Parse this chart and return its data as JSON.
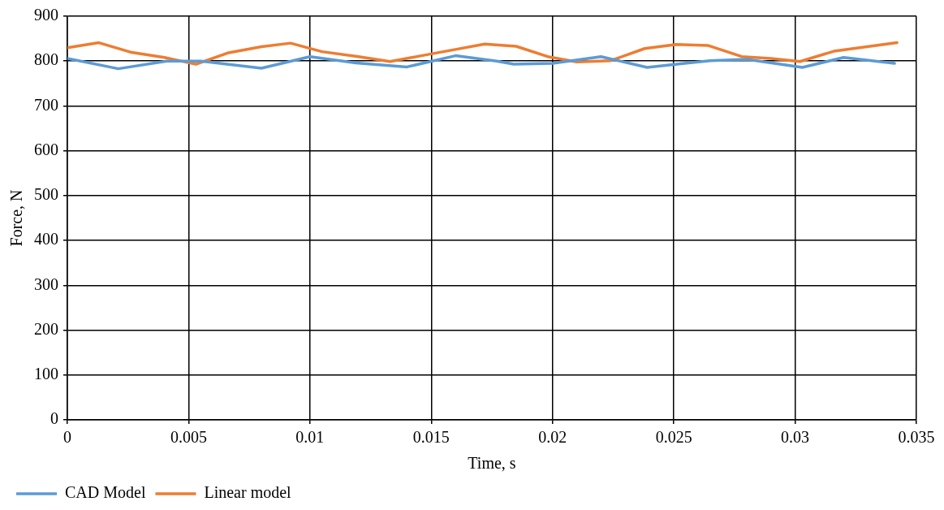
{
  "chart_data": {
    "type": "line",
    "xlabel": "Time, s",
    "ylabel": "Force, N",
    "xlim": [
      0,
      0.035
    ],
    "xticks": [
      0,
      0.005,
      0.01,
      0.015,
      0.02,
      0.025,
      0.03,
      0.035
    ],
    "ylim": [
      0,
      900
    ],
    "yticks": [
      0,
      100,
      200,
      300,
      400,
      500,
      600,
      700,
      800,
      900
    ],
    "grid": true,
    "legend": "bottom left",
    "marker": "none",
    "series": [
      {
        "name": "CAD Model",
        "color": "#5b9bd5",
        "x": [
          0,
          0.0021,
          0.0041,
          0.0055,
          0.008,
          0.01,
          0.0119,
          0.014,
          0.016,
          0.0177,
          0.0184,
          0.02,
          0.022,
          0.0239,
          0.0256,
          0.0265,
          0.028,
          0.0303,
          0.032,
          0.0341
        ],
        "values": [
          806,
          783,
          800,
          800,
          784,
          810,
          796,
          787,
          812,
          800,
          793,
          795,
          810,
          786,
          796,
          801,
          804,
          786,
          808,
          795
        ]
      },
      {
        "name": "Linear model",
        "color": "#ed7d31",
        "x": [
          0,
          0.0013,
          0.0026,
          0.004,
          0.0053,
          0.0066,
          0.008,
          0.0092,
          0.0105,
          0.012,
          0.0133,
          0.0145,
          0.016,
          0.0172,
          0.0185,
          0.0198,
          0.021,
          0.0224,
          0.0238,
          0.0251,
          0.0264,
          0.0278,
          0.029,
          0.0302,
          0.0316,
          0.0342
        ],
        "values": [
          830,
          841,
          820,
          808,
          793,
          818,
          832,
          840,
          821,
          810,
          799,
          811,
          826,
          838,
          833,
          810,
          798,
          801,
          828,
          837,
          835,
          810,
          806,
          799,
          822,
          841
        ]
      }
    ]
  }
}
